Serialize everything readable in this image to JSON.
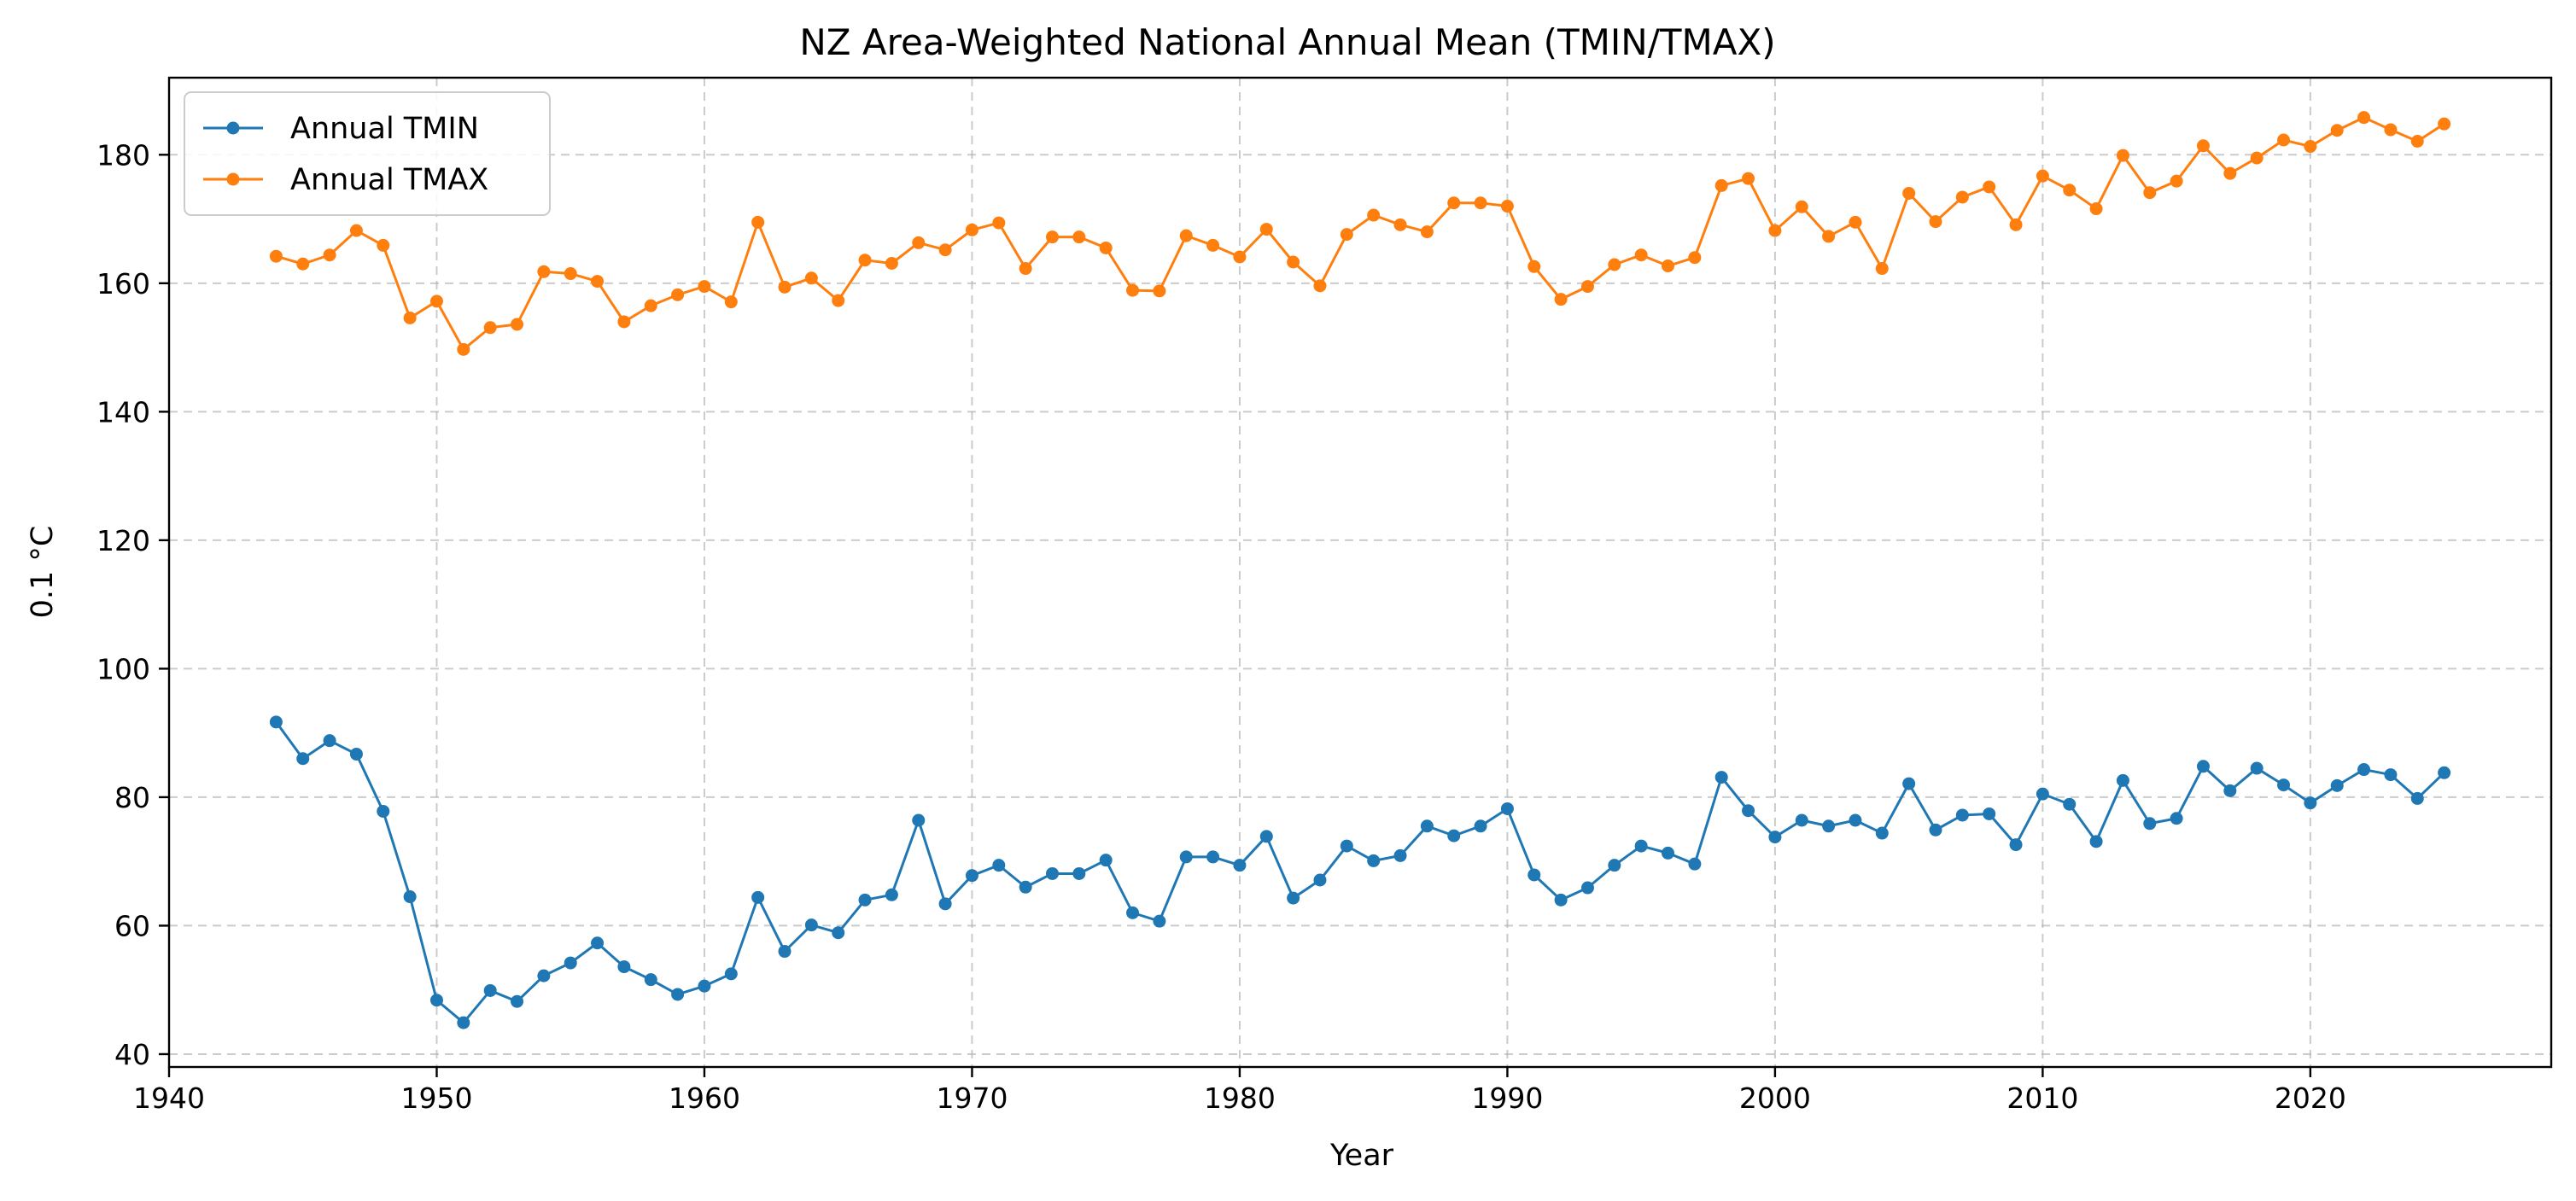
{
  "chart_data": {
    "type": "line",
    "title": "NZ Area-Weighted National Annual Mean (TMIN/TMAX)",
    "xlabel": "Year",
    "ylabel": "0.1 °C",
    "xlim": [
      1940,
      2029
    ],
    "ylim": [
      38,
      192
    ],
    "xticks": [
      1940,
      1950,
      1960,
      1970,
      1980,
      1990,
      2000,
      2010,
      2020
    ],
    "yticks": [
      40,
      60,
      80,
      100,
      120,
      140,
      160,
      180
    ],
    "grid": true,
    "legend_position": "top-left",
    "x": [
      1944,
      1945,
      1946,
      1947,
      1948,
      1949,
      1950,
      1951,
      1952,
      1953,
      1954,
      1955,
      1956,
      1957,
      1958,
      1959,
      1960,
      1961,
      1962,
      1963,
      1964,
      1965,
      1966,
      1967,
      1968,
      1969,
      1970,
      1971,
      1972,
      1973,
      1974,
      1975,
      1976,
      1977,
      1978,
      1979,
      1980,
      1981,
      1982,
      1983,
      1984,
      1985,
      1986,
      1987,
      1988,
      1989,
      1990,
      1991,
      1992,
      1993,
      1994,
      1995,
      1996,
      1997,
      1998,
      1999,
      2000,
      2001,
      2002,
      2003,
      2004,
      2005,
      2006,
      2007,
      2008,
      2009,
      2010,
      2011,
      2012,
      2013,
      2014,
      2015,
      2016,
      2017,
      2018,
      2019,
      2020,
      2021,
      2022,
      2023,
      2024,
      2025
    ],
    "series": [
      {
        "name": "Annual TMIN",
        "color": "#1f77b4",
        "values": [
          91.7,
          86.0,
          88.8,
          86.7,
          77.8,
          64.5,
          48.4,
          44.9,
          49.9,
          48.2,
          52.2,
          54.2,
          57.3,
          53.6,
          51.6,
          49.3,
          50.6,
          52.5,
          64.4,
          56.0,
          60.1,
          58.9,
          64.0,
          64.8,
          76.4,
          63.4,
          67.8,
          69.4,
          66.0,
          68.1,
          68.1,
          70.2,
          62.0,
          60.7,
          70.7,
          70.7,
          69.4,
          73.9,
          64.3,
          67.1,
          72.4,
          70.1,
          70.9,
          75.5,
          74.0,
          75.5,
          78.2,
          67.9,
          64.0,
          65.9,
          69.4,
          72.4,
          71.3,
          69.6,
          83.1,
          77.9,
          73.8,
          76.4,
          75.5,
          76.4,
          74.4,
          82.1,
          74.9,
          77.2,
          77.4,
          72.6,
          80.5,
          78.9,
          73.1,
          82.6,
          75.9,
          76.7,
          84.8,
          81.0,
          84.5,
          81.9,
          79.1,
          81.8,
          84.3,
          83.5,
          79.8,
          83.8
        ]
      },
      {
        "name": "Annual TMAX",
        "color": "#ff7f0e",
        "values": [
          164.2,
          163.0,
          164.4,
          168.2,
          165.9,
          154.6,
          157.2,
          149.7,
          153.1,
          153.6,
          161.8,
          161.5,
          160.3,
          154.0,
          156.5,
          158.2,
          159.5,
          157.1,
          169.5,
          159.4,
          160.8,
          157.3,
          163.6,
          163.1,
          166.3,
          165.2,
          168.3,
          169.4,
          162.3,
          167.2,
          167.2,
          165.5,
          158.9,
          158.8,
          167.4,
          165.9,
          164.1,
          168.4,
          163.3,
          159.6,
          167.6,
          170.6,
          169.1,
          168.0,
          172.5,
          172.5,
          172.0,
          162.6,
          157.5,
          159.5,
          162.9,
          164.4,
          162.7,
          164.0,
          175.2,
          176.3,
          168.2,
          171.9,
          167.3,
          169.5,
          162.3,
          174.0,
          169.6,
          173.4,
          175.0,
          169.1,
          176.7,
          174.5,
          171.6,
          179.9,
          174.1,
          175.9,
          181.4,
          177.1,
          179.5,
          182.3,
          181.3,
          183.8,
          185.8,
          183.9,
          182.1,
          184.8
        ]
      }
    ]
  }
}
